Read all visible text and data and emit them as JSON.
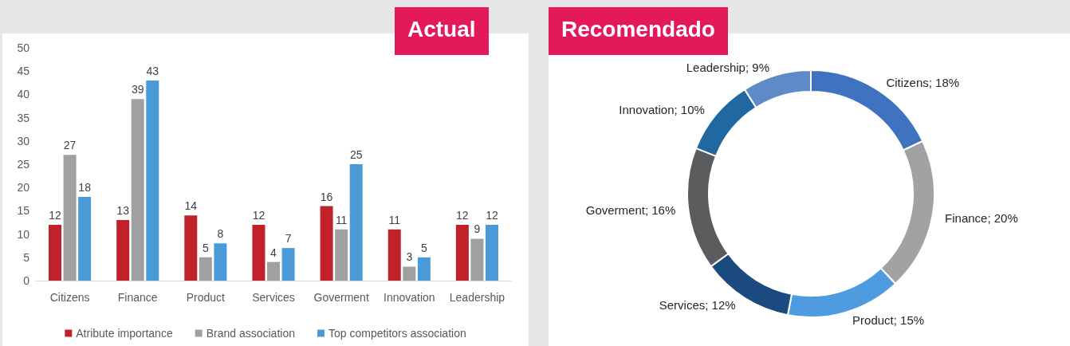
{
  "chart_data": [
    {
      "type": "bar",
      "title": "Actual",
      "categories": [
        "Citizens",
        "Finance",
        "Product",
        "Services",
        "Goverment",
        "Innovation",
        "Leadership"
      ],
      "series": [
        {
          "name": "Atribute importance",
          "color": "#c0212a",
          "values": [
            12,
            13,
            14,
            12,
            16,
            11,
            12
          ]
        },
        {
          "name": "Brand association",
          "color": "#a0a0a0",
          "values": [
            27,
            39,
            5,
            4,
            11,
            3,
            9
          ]
        },
        {
          "name": "Top competitors association",
          "color": "#4a9ad8",
          "values": [
            18,
            43,
            8,
            7,
            25,
            5,
            12
          ]
        }
      ],
      "ylim": [
        0,
        50
      ],
      "yticks": [
        0,
        5,
        10,
        15,
        20,
        25,
        30,
        35,
        40,
        45,
        50
      ],
      "grid": false,
      "legend": "bottom",
      "data_labels": true
    },
    {
      "type": "donut",
      "title": "Recomendado",
      "categories": [
        "Citizens",
        "Finance",
        "Product",
        "Services",
        "Goverment",
        "Innovation",
        "Leadership"
      ],
      "values": [
        18,
        20,
        15,
        12,
        16,
        10,
        9
      ],
      "colors": [
        "#3f72bf",
        "#a0a2a4",
        "#4f9be0",
        "#1b4a80",
        "#5a5c5e",
        "#2268a0",
        "#5f8ac8"
      ],
      "value_labels": [
        "; 18%",
        "; 20%",
        "; 15%",
        "; 12%",
        "; 16%",
        "; 10%",
        "; 9%"
      ],
      "legend": false
    }
  ]
}
